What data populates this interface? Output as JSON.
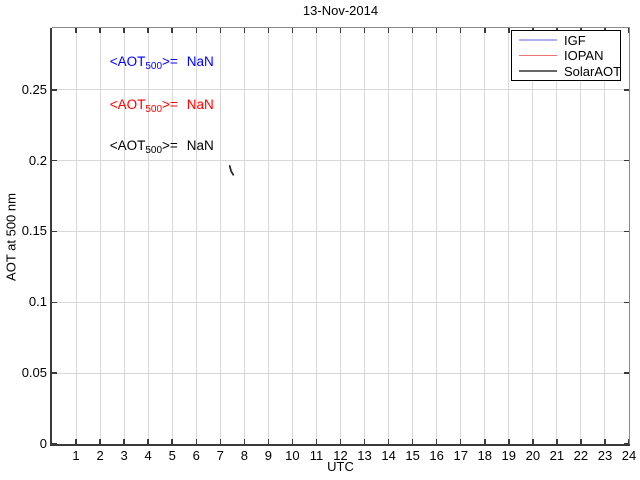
{
  "chart_data": {
    "type": "line",
    "title": "13-Nov-2014",
    "xlabel": "UTC",
    "ylabel": "AOT at 500 nm",
    "xlim": [
      0,
      24
    ],
    "ylim": [
      0,
      0.2936
    ],
    "xticks": [
      1,
      2,
      3,
      4,
      5,
      6,
      7,
      8,
      9,
      10,
      11,
      12,
      13,
      14,
      15,
      16,
      17,
      18,
      19,
      20,
      21,
      22,
      23,
      24
    ],
    "yticks": [
      {
        "value": 0,
        "label": "0"
      },
      {
        "value": 0.05,
        "label": "0.05"
      },
      {
        "value": 0.1,
        "label": "0.1"
      },
      {
        "value": 0.15,
        "label": "0.15"
      },
      {
        "value": 0.2,
        "label": "0.2"
      },
      {
        "value": 0.25,
        "label": "0.25"
      }
    ],
    "grid": true,
    "colors": {
      "background": "#ffffff",
      "grid": "#d8d8d8",
      "axis_dark": "#3a3a3a",
      "axis_light": "#8a8a8a",
      "tick": "#3a3a3a"
    },
    "legend": {
      "position": "top-right",
      "entries": [
        {
          "label": "IGF",
          "color": "#b0b0ee",
          "line_width": 2.6
        },
        {
          "label": "IOPAN",
          "color": "#ee7272",
          "line_width": 1.4
        },
        {
          "label": "SolarAOT",
          "color": "#666666",
          "line_width": 1.4
        }
      ]
    },
    "annotations": [
      {
        "prefix": "<AOT",
        "sub": "500",
        "suffix": ">=",
        "value": "NaN",
        "color": "#0000ff",
        "x": 2.4,
        "y": 0.269
      },
      {
        "prefix": "<AOT",
        "sub": "500",
        "suffix": ">=",
        "value": "NaN",
        "color": "#ff0000",
        "x": 2.4,
        "y": 0.2387
      },
      {
        "prefix": "<AOT",
        "sub": "500",
        "suffix": ">=",
        "value": "NaN",
        "color": "#000000",
        "x": 2.4,
        "y": 0.2097
      }
    ],
    "series": [
      {
        "name": "IGF",
        "color": "#0000ff",
        "points": []
      },
      {
        "name": "IOPAN",
        "color": "#ff0000",
        "points": []
      },
      {
        "name": "SolarAOT",
        "color": "#222222",
        "points": [
          [
            7.39,
            0.1963
          ],
          [
            7.45,
            0.1925
          ],
          [
            7.54,
            0.19
          ]
        ]
      }
    ]
  }
}
